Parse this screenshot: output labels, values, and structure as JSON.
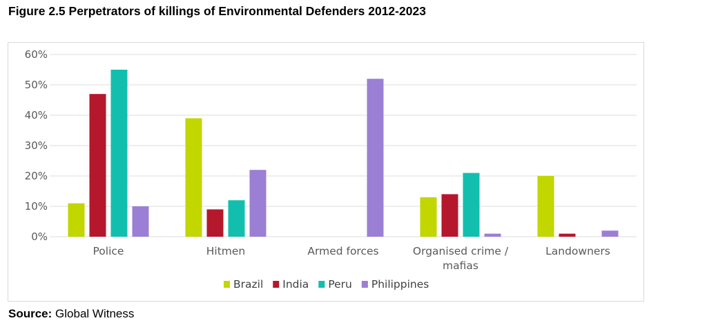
{
  "figure": {
    "title": "Figure 2.5 Perpetrators of killings of Environmental Defenders 2012-2023",
    "source_label": "Source:",
    "source_text": "Global Witness"
  },
  "chart_data": {
    "type": "bar",
    "title": "",
    "xlabel": "",
    "ylabel": "",
    "categories": [
      [
        "Police"
      ],
      [
        "Hitmen"
      ],
      [
        "Armed forces"
      ],
      [
        "Organised crime /",
        "mafias"
      ],
      [
        "Landowners"
      ]
    ],
    "series": [
      {
        "name": "Brazil",
        "color": "#c2d600",
        "values": [
          11,
          39,
          0,
          13,
          20
        ]
      },
      {
        "name": "India",
        "color": "#b5172c",
        "values": [
          47,
          9,
          0,
          14,
          1
        ]
      },
      {
        "name": "Peru",
        "color": "#12bfae",
        "values": [
          55,
          12,
          0,
          21,
          0
        ]
      },
      {
        "name": "Philippines",
        "color": "#9b7fd4",
        "values": [
          10,
          22,
          52,
          1,
          2
        ]
      }
    ],
    "ylim": [
      0,
      60
    ],
    "yticks": [
      0,
      10,
      20,
      30,
      40,
      50,
      60
    ],
    "ytick_labels": [
      "0%",
      "10%",
      "20%",
      "30%",
      "40%",
      "50%",
      "60%"
    ],
    "grid": true,
    "legend": "bottom-center"
  }
}
